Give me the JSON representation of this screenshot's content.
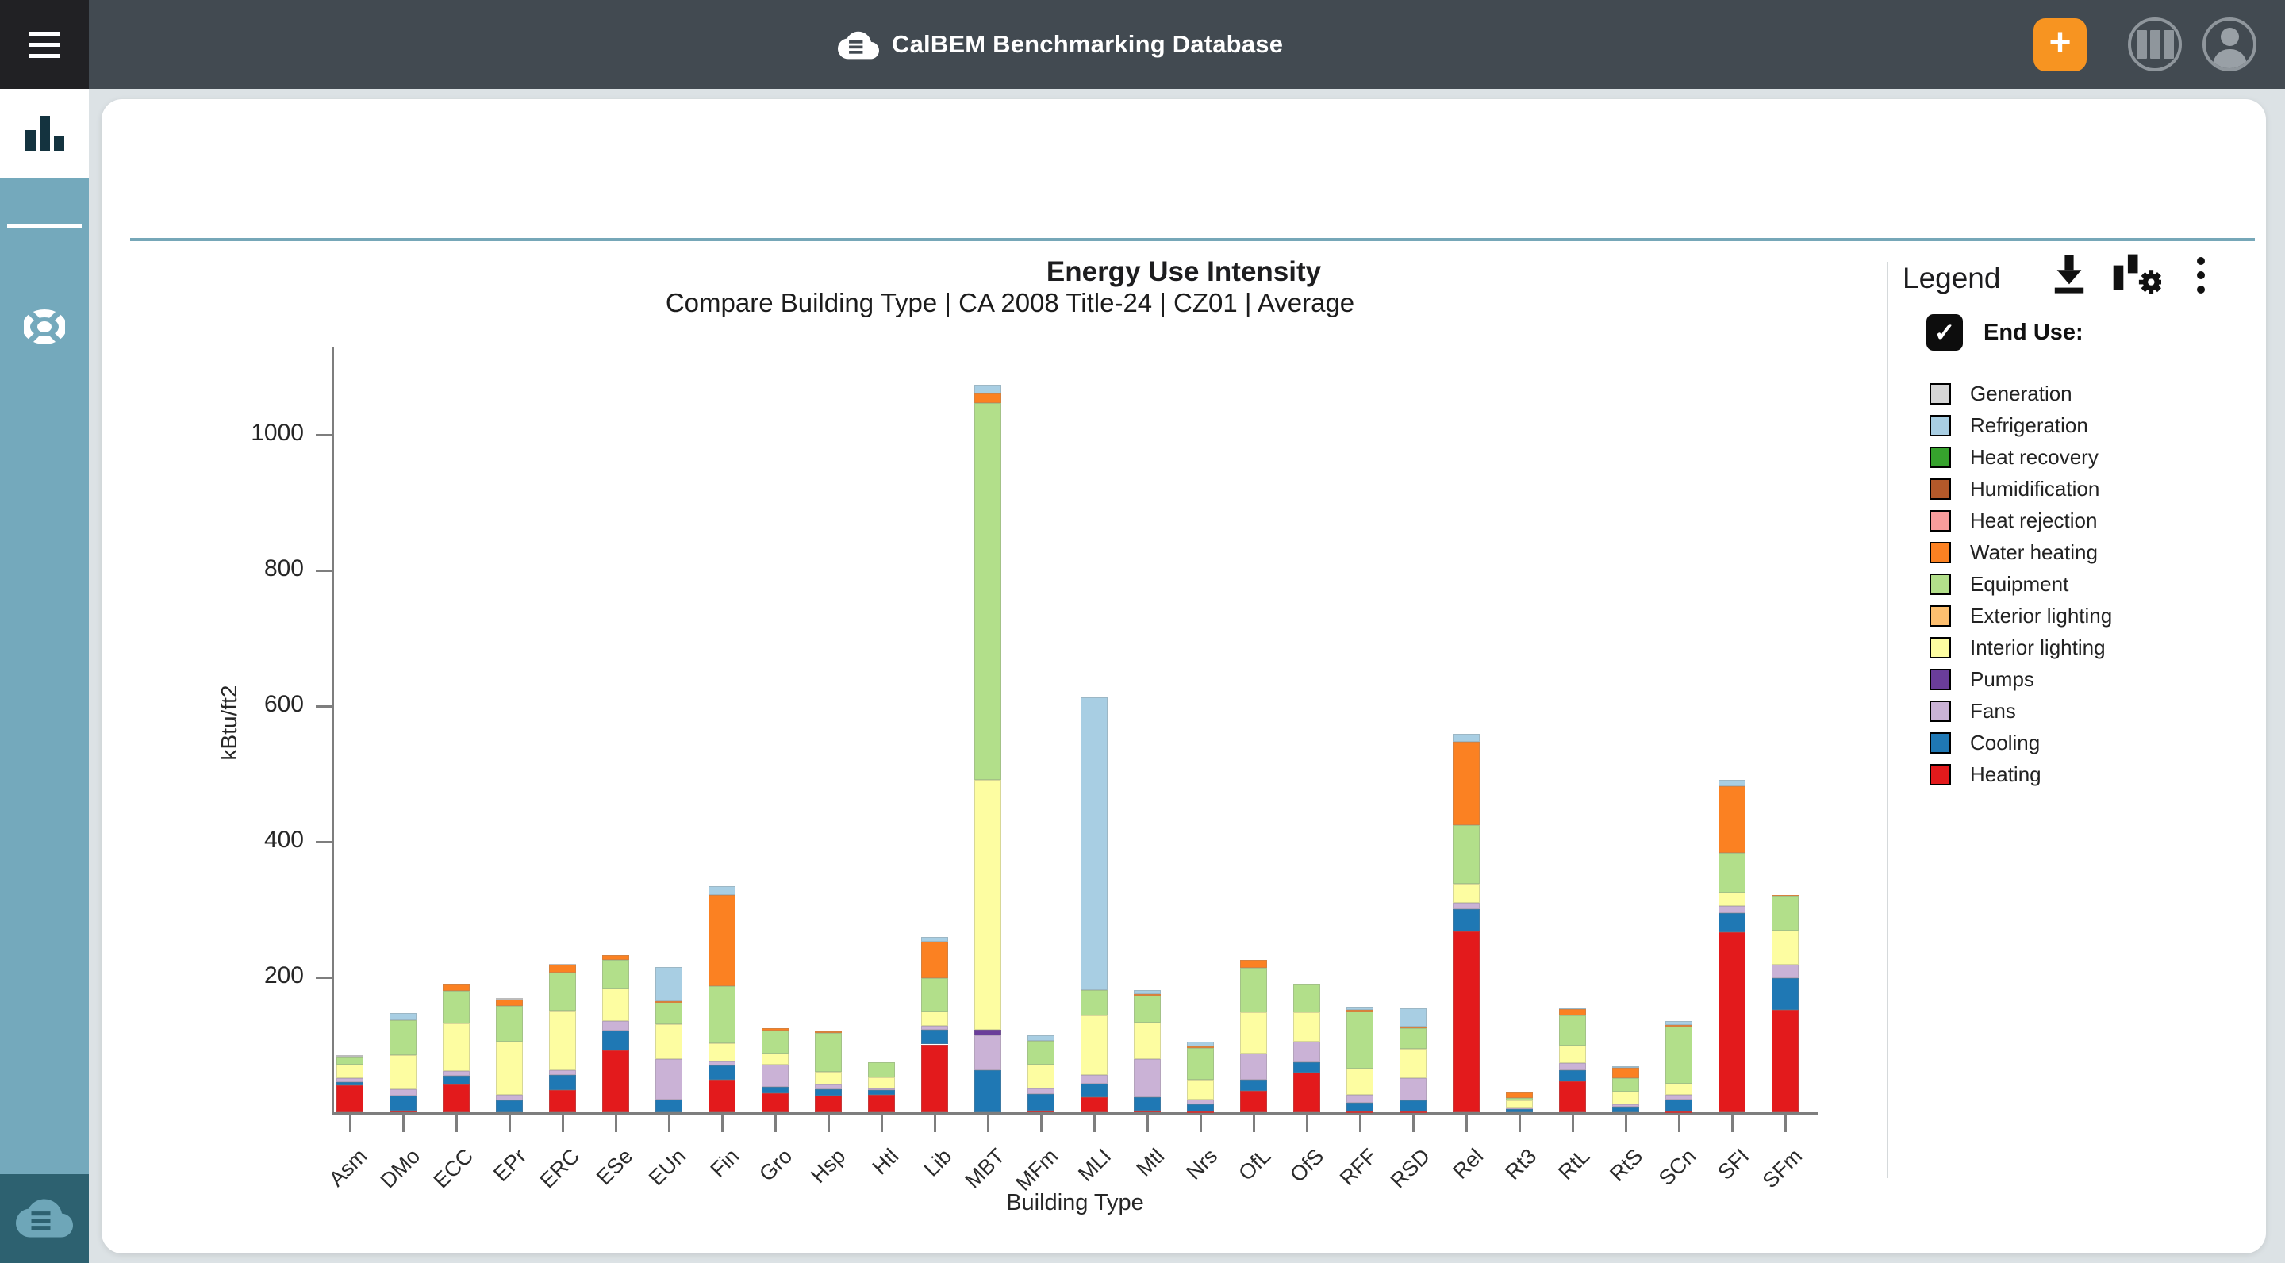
{
  "topbar": {
    "app_title": "CalBEM Benchmarking Database",
    "add_button_label": "+",
    "colors": {
      "bar_bg": "#424a51",
      "menu_bg": "#212124",
      "add_button": "#f79421",
      "icon_gray": "#8f969c"
    }
  },
  "sidebar": {
    "colors": {
      "teal": "#74a9bc",
      "active_bg": "#ffffff",
      "icon_dark": "#14333f",
      "bottom_bg": "#2d6170"
    },
    "items": [
      {
        "id": "charts",
        "icon": "bar-chart-icon",
        "active": true
      },
      {
        "id": "help",
        "icon": "wheel-icon",
        "active": false
      }
    ]
  },
  "card": {
    "title": "Energy Use Intensity",
    "toolbar_icons": [
      "download-icon",
      "chart-settings-icon",
      "more-options-icon"
    ],
    "divider_color": "#76a7b8"
  },
  "legend": {
    "heading": "Legend",
    "group": {
      "label": "End Use:",
      "checked": true,
      "checkmark": "✓"
    },
    "items": [
      {
        "label": "Generation",
        "color": "#d6d6d6"
      },
      {
        "label": "Refrigeration",
        "color": "#a8cee3"
      },
      {
        "label": "Heat recovery",
        "color": "#36a22d"
      },
      {
        "label": "Humidification",
        "color": "#b3592a"
      },
      {
        "label": "Heat rejection",
        "color": "#f89c9b"
      },
      {
        "label": "Water heating",
        "color": "#fb8122"
      },
      {
        "label": "Equipment",
        "color": "#b2df8a"
      },
      {
        "label": "Exterior lighting",
        "color": "#fdbf6f"
      },
      {
        "label": "Interior lighting",
        "color": "#fdfda1"
      },
      {
        "label": "Pumps",
        "color": "#6a3d9a"
      },
      {
        "label": "Fans",
        "color": "#cab2d6"
      },
      {
        "label": "Cooling",
        "color": "#1f78b4"
      },
      {
        "label": "Heating",
        "color": "#e31a1c"
      }
    ]
  },
  "chart_data": {
    "type": "bar",
    "stacked": true,
    "title": "Compare Building Type | CA 2008 Title-24 | CZ01 | Average",
    "xlabel": "Building Type",
    "ylabel": "kBtu/ft2",
    "units": "kBtu/ft2",
    "ylim": [
      0,
      1130
    ],
    "yticks": [
      200,
      400,
      600,
      800,
      1000
    ],
    "grid": false,
    "legend_position": "right",
    "categories": [
      "Asm",
      "DMo",
      "ECC",
      "EPr",
      "ERC",
      "ESe",
      "EUn",
      "Fin",
      "Gro",
      "Hsp",
      "Htl",
      "Lib",
      "MBT",
      "MFm",
      "MLI",
      "Mtl",
      "Nrs",
      "OfL",
      "OfS",
      "RFF",
      "RSD",
      "Rel",
      "Rt3",
      "RtL",
      "RtS",
      "SCn",
      "SFI",
      "SFm"
    ],
    "series": [
      {
        "name": "Heating",
        "color": "#e31a1c",
        "values": [
          40,
          2,
          41,
          0,
          33,
          91,
          0,
          48,
          28,
          25,
          26,
          100,
          0,
          2,
          22,
          2,
          1,
          32,
          58,
          1,
          1,
          267,
          0,
          46,
          0,
          1,
          266,
          151
        ]
      },
      {
        "name": "Cooling",
        "color": "#1f78b4",
        "values": [
          5,
          22,
          13,
          17,
          22,
          30,
          19,
          21,
          10,
          9,
          7,
          22,
          62,
          25,
          20,
          20,
          11,
          16,
          16,
          13,
          17,
          32,
          5,
          16,
          8,
          18,
          28,
          47
        ]
      },
      {
        "name": "Fans",
        "color": "#cab2d6",
        "values": [
          5,
          10,
          7,
          9,
          7,
          14,
          59,
          6,
          32,
          7,
          2,
          6,
          52,
          8,
          13,
          56,
          7,
          39,
          30,
          12,
          32,
          10,
          2,
          10,
          4,
          7,
          10,
          19
        ]
      },
      {
        "name": "Pumps",
        "color": "#6a3d9a",
        "values": [
          0,
          0,
          0,
          0,
          0,
          0,
          0,
          0,
          0,
          0,
          0,
          0,
          8,
          0,
          0,
          0,
          0,
          0,
          0,
          0,
          0,
          0,
          0,
          0,
          0,
          0,
          0,
          0
        ]
      },
      {
        "name": "Interior lighting",
        "color": "#fdfda1",
        "values": [
          20,
          50,
          70,
          78,
          88,
          47,
          52,
          27,
          16,
          19,
          16,
          20,
          368,
          35,
          88,
          54,
          29,
          60,
          43,
          38,
          44,
          28,
          10,
          26,
          18,
          16,
          20,
          51
        ]
      },
      {
        "name": "Exterior lighting",
        "color": "#fdbf6f",
        "values": [
          0,
          0,
          0,
          0,
          0,
          0,
          0,
          0,
          0,
          0,
          0,
          0,
          0,
          0,
          0,
          0,
          0,
          0,
          0,
          0,
          0,
          0,
          0,
          0,
          0,
          0,
          0,
          0
        ]
      },
      {
        "name": "Equipment",
        "color": "#b2df8a",
        "values": [
          12,
          52,
          48,
          53,
          56,
          42,
          32,
          84,
          35,
          57,
          23,
          50,
          556,
          35,
          37,
          40,
          47,
          66,
          43,
          85,
          30,
          86,
          4,
          45,
          20,
          84,
          59,
          50
        ]
      },
      {
        "name": "Water heating",
        "color": "#fb8122",
        "values": [
          0,
          0,
          10,
          9,
          11,
          8,
          2,
          134,
          3,
          2,
          0,
          54,
          14,
          0,
          0,
          2,
          2,
          11,
          0,
          2,
          2,
          123,
          8,
          9,
          16,
          3,
          98,
          3
        ]
      },
      {
        "name": "Heat rejection",
        "color": "#f89c9b",
        "values": [
          0,
          0,
          0,
          0,
          0,
          0,
          0,
          0,
          0,
          0,
          0,
          0,
          0,
          0,
          0,
          0,
          0,
          0,
          0,
          0,
          0,
          0,
          0,
          0,
          0,
          0,
          0,
          0
        ]
      },
      {
        "name": "Humidification",
        "color": "#b3592a",
        "values": [
          0,
          0,
          0,
          0,
          0,
          0,
          0,
          0,
          0,
          0,
          0,
          0,
          0,
          0,
          0,
          0,
          0,
          0,
          0,
          0,
          0,
          0,
          0,
          0,
          0,
          0,
          0,
          0
        ]
      },
      {
        "name": "Heat recovery",
        "color": "#36a22d",
        "values": [
          0,
          0,
          0,
          0,
          0,
          0,
          0,
          0,
          0,
          0,
          0,
          0,
          0,
          0,
          0,
          0,
          0,
          0,
          0,
          0,
          0,
          0,
          0,
          0,
          0,
          0,
          0,
          0
        ]
      },
      {
        "name": "Refrigeration",
        "color": "#a8cee3",
        "values": [
          0,
          10,
          0,
          0,
          0,
          0,
          50,
          13,
          0,
          0,
          0,
          6,
          13,
          8,
          432,
          6,
          7,
          0,
          0,
          5,
          27,
          12,
          0,
          2,
          2,
          5,
          9,
          0
        ]
      },
      {
        "name": "Generation",
        "color": "#d6d6d6",
        "values": [
          2,
          0,
          0,
          2,
          2,
          0,
          0,
          0,
          0,
          0,
          0,
          0,
          0,
          0,
          0,
          0,
          0,
          0,
          0,
          0,
          0,
          0,
          0,
          0,
          0,
          0,
          0,
          0
        ]
      }
    ]
  }
}
